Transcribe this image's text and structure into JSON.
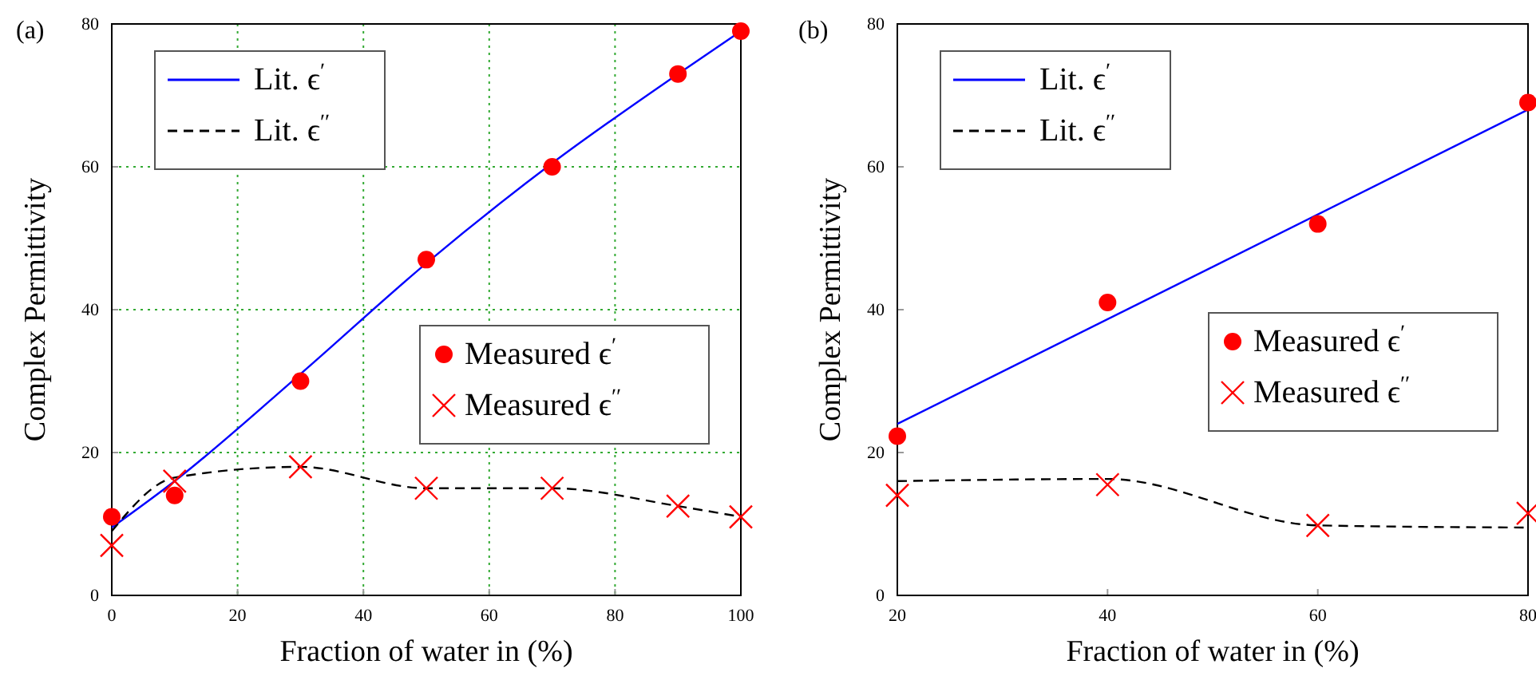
{
  "chart_data": [
    {
      "type": "line",
      "title": "(a)",
      "xlabel": "Fraction of water in (%)",
      "ylabel": "Complex Permittivity",
      "xlim": [
        0,
        100
      ],
      "ylim": [
        0,
        80
      ],
      "xticks": [
        0,
        20,
        40,
        60,
        80,
        100
      ],
      "yticks": [
        0,
        20,
        40,
        60,
        80
      ],
      "grid": true,
      "legend": "top left",
      "series": [
        {
          "name": "Lit. ϵ$^{′}$",
          "type": "line",
          "color": "#0000ff",
          "line_style": "solid",
          "x": [
            0,
            10,
            30,
            50,
            70,
            90,
            100
          ],
          "values": [
            9.5,
            16,
            31,
            46.5,
            60.5,
            73,
            79
          ]
        },
        {
          "name": "Lit. ϵ$^{′′}$",
          "type": "line",
          "color": "#000000",
          "line_style": "dashed",
          "x": [
            0,
            10,
            30,
            50,
            70,
            90,
            100
          ],
          "values": [
            9,
            16.5,
            18,
            15,
            15,
            12.5,
            11
          ]
        },
        {
          "name": "Measured ϵ$^{′}$",
          "type": "scatter",
          "color": "#ff0000",
          "marker": "circle",
          "x": [
            0,
            10,
            30,
            50,
            70,
            90,
            100
          ],
          "values": [
            11,
            14,
            30,
            47,
            60,
            73,
            79
          ]
        },
        {
          "name": "Measured ϵ$^{′′}$",
          "type": "scatter",
          "color": "#ff0000",
          "marker": "cross",
          "x": [
            0,
            10,
            30,
            50,
            70,
            90,
            100
          ],
          "values": [
            7,
            16,
            18,
            15,
            15,
            12.5,
            11
          ]
        }
      ]
    },
    {
      "type": "line",
      "title": "(b)",
      "xlabel": "Fraction of water in (%)",
      "ylabel": "Complex Permittivity",
      "xlim": [
        20,
        80
      ],
      "ylim": [
        0,
        80
      ],
      "xticks": [
        20,
        40,
        60,
        80
      ],
      "yticks": [
        0,
        20,
        40,
        60,
        80
      ],
      "grid": false,
      "legend": "top left",
      "series": [
        {
          "name": "Lit. ϵ$^{′}$",
          "type": "line",
          "color": "#0000ff",
          "line_style": "solid",
          "x": [
            20,
            80
          ],
          "values": [
            24,
            68
          ]
        },
        {
          "name": "Lit. ϵ$^{′′}$",
          "type": "line",
          "color": "#000000",
          "line_style": "dashed",
          "x": [
            20,
            40,
            60,
            80
          ],
          "values": [
            16,
            16.3,
            9.8,
            9.5
          ]
        },
        {
          "name": "Measured ϵ$^{′}$",
          "type": "scatter",
          "color": "#ff0000",
          "marker": "circle",
          "x": [
            20,
            40,
            60,
            80
          ],
          "values": [
            22.3,
            41,
            52,
            69
          ]
        },
        {
          "name": "Measured ϵ$^{′′}$",
          "type": "scatter",
          "color": "#ff0000",
          "marker": "cross",
          "x": [
            20,
            40,
            60,
            80
          ],
          "values": [
            14,
            15.5,
            9.8,
            11.5
          ]
        }
      ]
    }
  ]
}
